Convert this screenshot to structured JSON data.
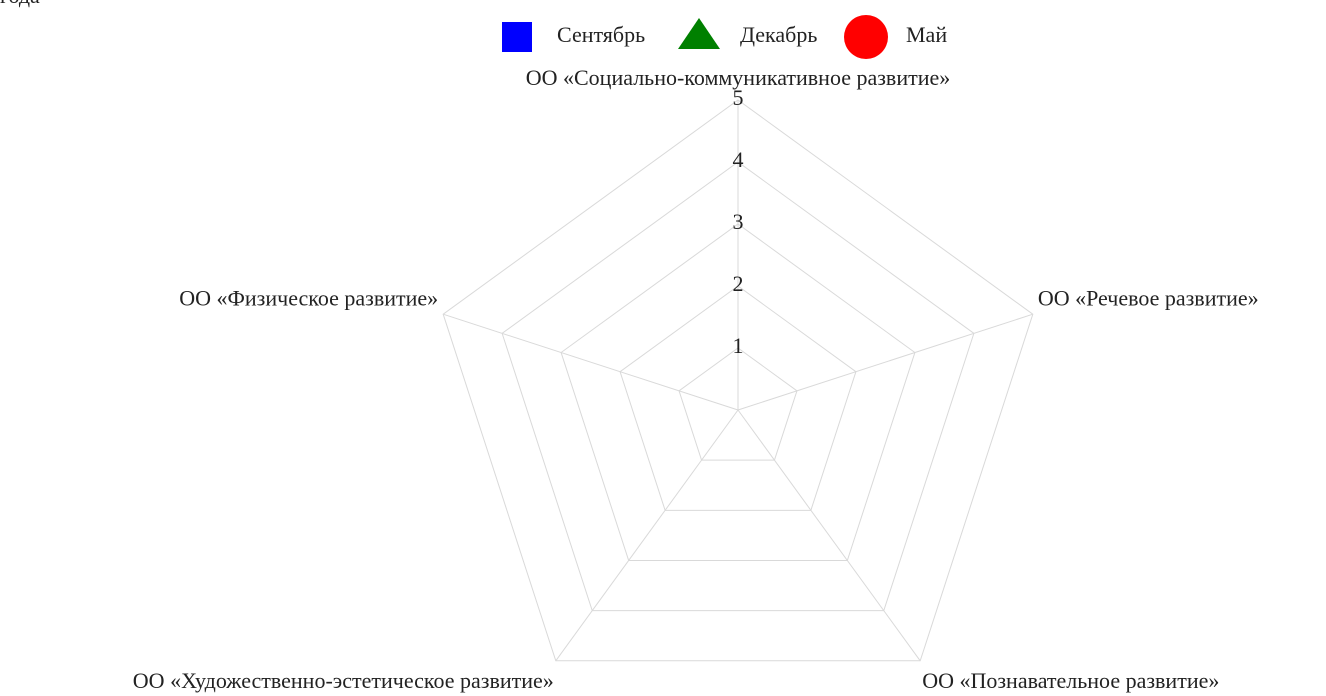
{
  "chart_data": {
    "type": "radar",
    "title": "года",
    "categories": [
      "ОО «Социально-коммуникативное развитие»",
      "ОО «Речевое развитие»",
      "ОО «Познавательное развитие»",
      "ОО «Художественно-эстетическое развитие»",
      "ОО «Физическое развитие»"
    ],
    "series": [
      {
        "name": "Сентябрь",
        "color": "#0000ff",
        "marker": "square",
        "values": [
          null,
          null,
          null,
          null,
          null
        ]
      },
      {
        "name": "Декабрь",
        "color": "#008000",
        "marker": "triangle",
        "values": [
          null,
          null,
          null,
          null,
          null
        ]
      },
      {
        "name": "Май",
        "color": "#ff0000",
        "marker": "circle",
        "values": [
          null,
          null,
          null,
          null,
          null
        ]
      }
    ],
    "ylim": [
      0,
      5
    ],
    "yticks": [
      1,
      2,
      3,
      4,
      5
    ],
    "grid": true,
    "legend": "top"
  }
}
